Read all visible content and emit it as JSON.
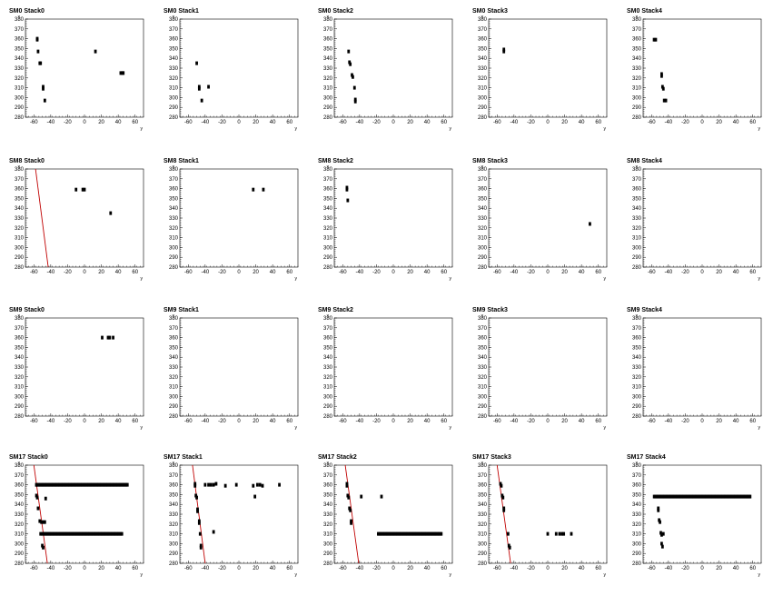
{
  "chart_data": [
    {
      "type": "scatter",
      "title": "SM0 Stack0",
      "xlabel": "y",
      "ylabel": "x",
      "xlim": [
        -70,
        70
      ],
      "ylim": [
        280,
        380
      ],
      "xticks": [
        -60,
        -40,
        -20,
        0,
        20,
        40,
        60
      ],
      "yticks": [
        280,
        290,
        300,
        310,
        320,
        330,
        340,
        350,
        360,
        370,
        380
      ],
      "points": [
        [
          -56,
          360
        ],
        [
          -56,
          359
        ],
        [
          -55,
          347
        ],
        [
          -53,
          335
        ],
        [
          -52,
          335
        ],
        [
          -49,
          311
        ],
        [
          -49,
          309
        ],
        [
          -47,
          297
        ],
        [
          13,
          347
        ],
        [
          43,
          325
        ],
        [
          45,
          325
        ],
        [
          46,
          325
        ]
      ],
      "track": null
    },
    {
      "type": "scatter",
      "title": "SM0 Stack1",
      "xlabel": "y",
      "ylabel": "x",
      "xlim": [
        -70,
        70
      ],
      "ylim": [
        280,
        380
      ],
      "xticks": [
        -60,
        -40,
        -20,
        0,
        20,
        40,
        60
      ],
      "yticks": [
        280,
        290,
        300,
        310,
        320,
        330,
        340,
        350,
        360,
        370,
        380
      ],
      "points": [
        [
          -50,
          335
        ],
        [
          -47,
          311
        ],
        [
          -47,
          309
        ],
        [
          -36,
          311
        ],
        [
          -44,
          297
        ]
      ],
      "track": null
    },
    {
      "type": "scatter",
      "title": "SM0 Stack2",
      "xlabel": "y",
      "ylabel": "x",
      "xlim": [
        -70,
        70
      ],
      "ylim": [
        280,
        380
      ],
      "xticks": [
        -60,
        -40,
        -20,
        0,
        20,
        40,
        60
      ],
      "yticks": [
        280,
        290,
        300,
        310,
        320,
        330,
        340,
        350,
        360,
        370,
        380
      ],
      "points": [
        [
          -53,
          347
        ],
        [
          -52,
          336
        ],
        [
          -51,
          334
        ],
        [
          -49,
          323
        ],
        [
          -48,
          321
        ],
        [
          -46,
          310
        ],
        [
          -45,
          298
        ],
        [
          -45,
          296
        ]
      ],
      "track": null
    },
    {
      "type": "scatter",
      "title": "SM0 Stack3",
      "xlabel": "y",
      "ylabel": "x",
      "xlim": [
        -70,
        70
      ],
      "ylim": [
        280,
        380
      ],
      "xticks": [
        -60,
        -40,
        -20,
        0,
        20,
        40,
        60
      ],
      "yticks": [
        280,
        290,
        300,
        310,
        320,
        330,
        340,
        350,
        360,
        370,
        380
      ],
      "points": [
        [
          -52,
          349
        ],
        [
          -52,
          347
        ]
      ],
      "track": null
    },
    {
      "type": "scatter",
      "title": "SM0 Stack4",
      "xlabel": "y",
      "ylabel": "x",
      "xlim": [
        -70,
        70
      ],
      "ylim": [
        280,
        380
      ],
      "xticks": [
        -60,
        -40,
        -20,
        0,
        20,
        40,
        60
      ],
      "yticks": [
        280,
        290,
        300,
        310,
        320,
        330,
        340,
        350,
        360,
        370,
        380
      ],
      "points": [
        [
          -57,
          359
        ],
        [
          -55,
          359
        ],
        [
          -48,
          324
        ],
        [
          -48,
          322
        ],
        [
          -47,
          311
        ],
        [
          -46,
          309
        ],
        [
          -45,
          297
        ],
        [
          -43,
          297
        ]
      ],
      "track": null
    },
    {
      "type": "scatter",
      "title": "SM8 Stack0",
      "xlabel": "y",
      "ylabel": "x",
      "xlim": [
        -70,
        70
      ],
      "ylim": [
        280,
        380
      ],
      "xticks": [
        -60,
        -40,
        -20,
        0,
        20,
        40,
        60
      ],
      "yticks": [
        280,
        290,
        300,
        310,
        320,
        330,
        340,
        350,
        360,
        370,
        380
      ],
      "points": [
        [
          -10,
          359
        ],
        [
          -2,
          359
        ],
        [
          0,
          359
        ],
        [
          31,
          335
        ]
      ],
      "track": [
        [
          -58,
          380
        ],
        [
          -43,
          280
        ]
      ]
    },
    {
      "type": "scatter",
      "title": "SM8 Stack1",
      "xlabel": "y",
      "ylabel": "x",
      "xlim": [
        -70,
        70
      ],
      "ylim": [
        280,
        380
      ],
      "xticks": [
        -60,
        -40,
        -20,
        0,
        20,
        40,
        60
      ],
      "yticks": [
        280,
        290,
        300,
        310,
        320,
        330,
        340,
        350,
        360,
        370,
        380
      ],
      "points": [
        [
          17,
          359
        ],
        [
          29,
          359
        ]
      ],
      "track": null
    },
    {
      "type": "scatter",
      "title": "SM8 Stack2",
      "xlabel": "y",
      "ylabel": "x",
      "xlim": [
        -70,
        70
      ],
      "ylim": [
        280,
        380
      ],
      "xticks": [
        -60,
        -40,
        -20,
        0,
        20,
        40,
        60
      ],
      "yticks": [
        280,
        290,
        300,
        310,
        320,
        330,
        340,
        350,
        360,
        370,
        380
      ],
      "points": [
        [
          -55,
          361
        ],
        [
          -55,
          359
        ],
        [
          -54,
          348
        ]
      ],
      "track": null
    },
    {
      "type": "scatter",
      "title": "SM8 Stack3",
      "xlabel": "y",
      "ylabel": "x",
      "xlim": [
        -70,
        70
      ],
      "ylim": [
        280,
        380
      ],
      "xticks": [
        -60,
        -40,
        -20,
        0,
        20,
        40,
        60
      ],
      "yticks": [
        280,
        290,
        300,
        310,
        320,
        330,
        340,
        350,
        360,
        370,
        380
      ],
      "points": [
        [
          50,
          324
        ]
      ],
      "track": null
    },
    {
      "type": "scatter",
      "title": "SM8 Stack4",
      "xlabel": "y",
      "ylabel": "x",
      "xlim": [
        -70,
        70
      ],
      "ylim": [
        280,
        380
      ],
      "xticks": [
        -60,
        -40,
        -20,
        0,
        20,
        40,
        60
      ],
      "yticks": [
        280,
        290,
        300,
        310,
        320,
        330,
        340,
        350,
        360,
        370,
        380
      ],
      "points": [],
      "track": null
    },
    {
      "type": "scatter",
      "title": "SM9 Stack0",
      "xlabel": "y",
      "ylabel": "x",
      "xlim": [
        -70,
        70
      ],
      "ylim": [
        280,
        380
      ],
      "xticks": [
        -60,
        -40,
        -20,
        0,
        20,
        40,
        60
      ],
      "yticks": [
        280,
        290,
        300,
        310,
        320,
        330,
        340,
        350,
        360,
        370,
        380
      ],
      "points": [
        [
          21,
          360
        ],
        [
          28,
          360
        ],
        [
          30,
          360
        ],
        [
          34,
          360
        ]
      ],
      "track": null
    },
    {
      "type": "scatter",
      "title": "SM9 Stack1",
      "xlabel": "y",
      "ylabel": "x",
      "xlim": [
        -70,
        70
      ],
      "ylim": [
        280,
        380
      ],
      "xticks": [
        -60,
        -40,
        -20,
        0,
        20,
        40,
        60
      ],
      "yticks": [
        280,
        290,
        300,
        310,
        320,
        330,
        340,
        350,
        360,
        370,
        380
      ],
      "points": [],
      "track": null
    },
    {
      "type": "scatter",
      "title": "SM9 Stack2",
      "xlabel": "y",
      "ylabel": "x",
      "xlim": [
        -70,
        70
      ],
      "ylim": [
        280,
        380
      ],
      "xticks": [
        -60,
        -40,
        -20,
        0,
        20,
        40,
        60
      ],
      "yticks": [
        280,
        290,
        300,
        310,
        320,
        330,
        340,
        350,
        360,
        370,
        380
      ],
      "points": [],
      "track": null
    },
    {
      "type": "scatter",
      "title": "SM9 Stack3",
      "xlabel": "y",
      "ylabel": "x",
      "xlim": [
        -70,
        70
      ],
      "ylim": [
        280,
        380
      ],
      "xticks": [
        -60,
        -40,
        -20,
        0,
        20,
        40,
        60
      ],
      "yticks": [
        280,
        290,
        300,
        310,
        320,
        330,
        340,
        350,
        360,
        370,
        380
      ],
      "points": [],
      "track": null
    },
    {
      "type": "scatter",
      "title": "SM9 Stack4",
      "xlabel": "y",
      "ylabel": "x",
      "xlim": [
        -70,
        70
      ],
      "ylim": [
        280,
        380
      ],
      "xticks": [
        -60,
        -40,
        -20,
        0,
        20,
        40,
        60
      ],
      "yticks": [
        280,
        290,
        300,
        310,
        320,
        330,
        340,
        350,
        360,
        370,
        380
      ],
      "points": [],
      "track": null
    },
    {
      "type": "scatter",
      "title": "SM17 Stack0",
      "xlabel": "y",
      "ylabel": "x",
      "xlim": [
        -70,
        70
      ],
      "ylim": [
        280,
        380
      ],
      "xticks": [
        -60,
        -40,
        -20,
        0,
        20,
        40,
        60
      ],
      "yticks": [
        280,
        290,
        300,
        310,
        320,
        330,
        340,
        350,
        360,
        370,
        380
      ],
      "points": [
        [
          -57,
          360
        ],
        [
          -57,
          349
        ],
        [
          -56,
          347
        ],
        [
          -55,
          336
        ],
        [
          -53,
          323
        ],
        [
          -51,
          322
        ],
        [
          -49,
          322
        ],
        [
          -47,
          322
        ],
        [
          -52,
          310
        ],
        [
          -50,
          298
        ],
        [
          -49,
          296
        ],
        [
          -46,
          346
        ]
      ],
      "bands": [
        {
          "x0": -57,
          "x1": 52,
          "y": 360,
          "step": 1.5
        },
        {
          "x0": -50,
          "x1": 45,
          "y": 310,
          "step": 1.5
        }
      ],
      "track": [
        [
          -60,
          380
        ],
        [
          -44,
          280
        ]
      ]
    },
    {
      "type": "scatter",
      "title": "SM17 Stack1",
      "xlabel": "y",
      "ylabel": "x",
      "xlim": [
        -70,
        70
      ],
      "ylim": [
        280,
        380
      ],
      "xticks": [
        -60,
        -40,
        -20,
        0,
        20,
        40,
        60
      ],
      "yticks": [
        280,
        290,
        300,
        310,
        320,
        330,
        340,
        350,
        360,
        370,
        380
      ],
      "points": [
        [
          -52,
          361
        ],
        [
          -52,
          359
        ],
        [
          -51,
          349
        ],
        [
          -50,
          347
        ],
        [
          -49,
          335
        ],
        [
          -49,
          333
        ],
        [
          -47,
          323
        ],
        [
          -47,
          321
        ],
        [
          -46,
          310
        ],
        [
          -45,
          298
        ],
        [
          -45,
          296
        ],
        [
          -40,
          360
        ],
        [
          -36,
          360
        ],
        [
          -33,
          360
        ],
        [
          -30,
          360
        ],
        [
          -27,
          361
        ],
        [
          -16,
          359
        ],
        [
          -3,
          360
        ],
        [
          17,
          359
        ],
        [
          22,
          360
        ],
        [
          25,
          360
        ],
        [
          28,
          359
        ],
        [
          48,
          360
        ],
        [
          19,
          348
        ],
        [
          -30,
          312
        ]
      ],
      "track": [
        [
          -55,
          380
        ],
        [
          -40,
          280
        ]
      ]
    },
    {
      "type": "scatter",
      "title": "SM17 Stack2",
      "xlabel": "y",
      "ylabel": "x",
      "xlim": [
        -70,
        70
      ],
      "ylim": [
        280,
        380
      ],
      "xticks": [
        -60,
        -40,
        -20,
        0,
        20,
        40,
        60
      ],
      "yticks": [
        280,
        290,
        300,
        310,
        320,
        330,
        340,
        350,
        360,
        370,
        380
      ],
      "points": [
        [
          -55,
          361
        ],
        [
          -55,
          359
        ],
        [
          -54,
          349
        ],
        [
          -53,
          347
        ],
        [
          -52,
          336
        ],
        [
          -51,
          334
        ],
        [
          -50,
          323
        ],
        [
          -50,
          321
        ],
        [
          -38,
          348
        ],
        [
          -14,
          348
        ]
      ],
      "bands": [
        {
          "x0": -18,
          "x1": 57,
          "y": 310,
          "step": 1.5
        }
      ],
      "track": [
        [
          -57,
          380
        ],
        [
          -41,
          280
        ]
      ]
    },
    {
      "type": "scatter",
      "title": "SM17 Stack3",
      "xlabel": "y",
      "ylabel": "x",
      "xlim": [
        -70,
        70
      ],
      "ylim": [
        280,
        380
      ],
      "xticks": [
        -60,
        -40,
        -20,
        0,
        20,
        40,
        60
      ],
      "yticks": [
        280,
        290,
        300,
        310,
        320,
        330,
        340,
        350,
        360,
        370,
        380
      ],
      "points": [
        [
          -56,
          361
        ],
        [
          -55,
          359
        ],
        [
          -54,
          349
        ],
        [
          -53,
          347
        ],
        [
          -52,
          336
        ],
        [
          -52,
          334
        ],
        [
          -47,
          310
        ],
        [
          -46,
          298
        ],
        [
          -45,
          296
        ],
        [
          0,
          310
        ],
        [
          10,
          310
        ],
        [
          14,
          310
        ],
        [
          17,
          310
        ],
        [
          19,
          310
        ],
        [
          28,
          310
        ]
      ],
      "track": [
        [
          -60,
          380
        ],
        [
          -44,
          280
        ]
      ]
    },
    {
      "type": "scatter",
      "title": "SM17 Stack4",
      "xlabel": "y",
      "ylabel": "x",
      "xlim": [
        -70,
        70
      ],
      "ylim": [
        280,
        380
      ],
      "xticks": [
        -60,
        -40,
        -20,
        0,
        20,
        40,
        60
      ],
      "yticks": [
        280,
        290,
        300,
        310,
        320,
        330,
        340,
        350,
        360,
        370,
        380
      ],
      "points": [
        [
          -52,
          336
        ],
        [
          -52,
          334
        ],
        [
          -51,
          324
        ],
        [
          -50,
          322
        ],
        [
          -49,
          311
        ],
        [
          -48,
          309
        ],
        [
          -46,
          310
        ],
        [
          -48,
          300
        ],
        [
          -47,
          297
        ]
      ],
      "bands": [
        {
          "x0": -57,
          "x1": 57,
          "y": 348,
          "step": 1.5
        }
      ],
      "track": null
    }
  ],
  "colors": {
    "marker": "#000000",
    "track": "#c00000",
    "frame": "#000000",
    "background": "#ffffff"
  }
}
